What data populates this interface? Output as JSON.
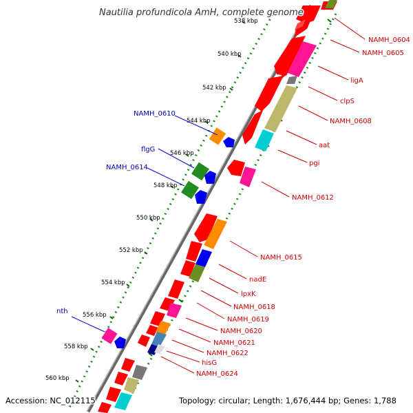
{
  "title": "Nautilia profundicola AmH, complete genome",
  "footer": {
    "accession": "Accession: NC_012115",
    "summary": "Topology: circular; Length: 1,676,444 bp; Genes: 1,788"
  },
  "ticks": [
    "538 kbp",
    "540 kbp",
    "542 kbp",
    "544 kbp",
    "546 kbp",
    "548 kbp",
    "550 kbp",
    "552 kbp",
    "554 kbp",
    "556 kbp",
    "558 kbp",
    "560 kbp"
  ],
  "left_labels": [
    "NAMH_0610",
    "flgG",
    "NAMH_0614",
    "nth"
  ],
  "right_labels": [
    "NAMH_0604",
    "NAMH_0605",
    "ligA",
    "clpS",
    "NAMH_0608",
    "aat",
    "pgi",
    "NAMH_0612",
    "NAMH_0615",
    "nadE",
    "lpxK",
    "NAMH_0618",
    "NAMH_0619",
    "NAMH_0620",
    "NAMH_0621",
    "NAMH_0622",
    "hisG",
    "NAMH_0624"
  ],
  "colors": {
    "forward_label": "#cc0000",
    "reverse_label": "#0000aa",
    "backbone": "#888888",
    "gc_dots": "#1a8a1a"
  }
}
